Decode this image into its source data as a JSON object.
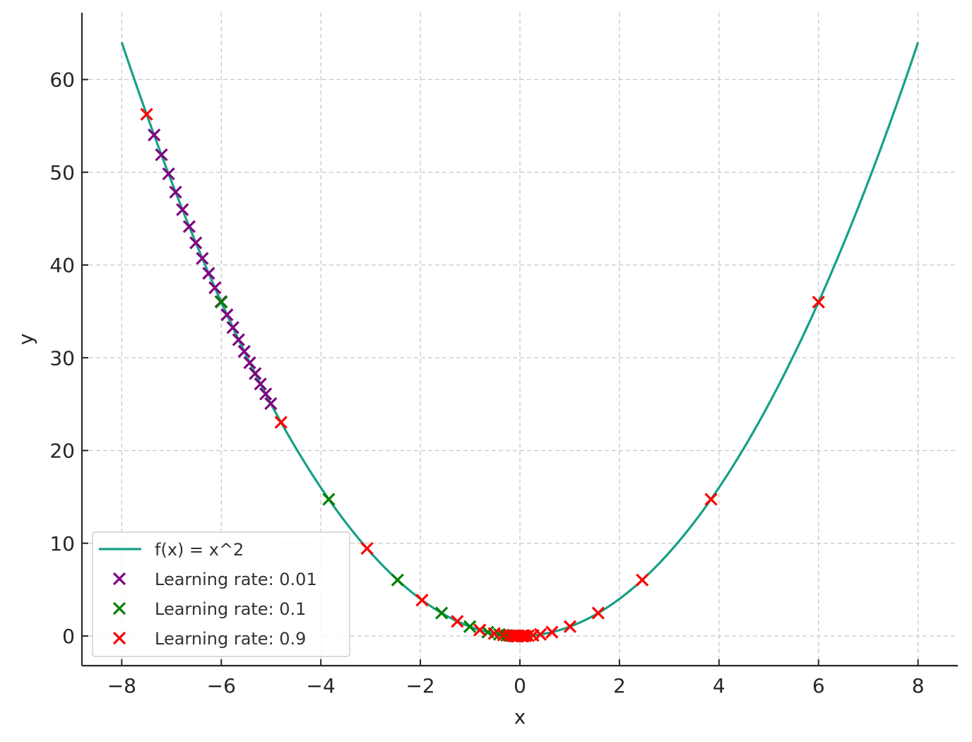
{
  "chart_data": {
    "type": "line",
    "title": "",
    "xlabel": "x",
    "ylabel": "y",
    "xlim": [
      -8.8,
      8.8
    ],
    "ylim": [
      -3.2,
      67.2
    ],
    "xticks": [
      -8,
      -6,
      -4,
      -2,
      0,
      2,
      4,
      6,
      8
    ],
    "xtick_labels": [
      "−8",
      "−6",
      "−4",
      "−2",
      "0",
      "2",
      "4",
      "6",
      "8"
    ],
    "yticks": [
      0,
      10,
      20,
      30,
      40,
      50,
      60
    ],
    "ytick_labels": [
      "0",
      "10",
      "20",
      "30",
      "40",
      "50",
      "60"
    ],
    "grid": true,
    "legend_position": "bottom-left",
    "curve": {
      "name": "f(x) = x^2",
      "color": "#16a085",
      "x_range": [
        -8,
        8
      ]
    },
    "series": [
      {
        "name": "Learning rate: 0.01",
        "type": "scatter",
        "marker": "x",
        "color": "#800080",
        "x": [
          -7.35,
          -7.203,
          -7.059,
          -6.918,
          -6.78,
          -6.644,
          -6.511,
          -6.381,
          -6.253,
          -6.128,
          -6.005,
          -5.885,
          -5.767,
          -5.652,
          -5.539,
          -5.428,
          -5.319,
          -5.213,
          -5.108,
          -5.006
        ]
      },
      {
        "name": "Learning rate: 0.1",
        "type": "scatter",
        "marker": "x",
        "color": "#008000",
        "x": [
          -6.0,
          -3.84,
          -2.458,
          -1.573,
          -1.007,
          -0.644,
          -0.412,
          -0.264,
          -0.169,
          -0.108,
          -0.069,
          -0.044
        ]
      },
      {
        "name": "Learning rate: 0.9",
        "type": "scatter",
        "marker": "x",
        "color": "#ff0000",
        "x": [
          -7.5,
          6.0,
          -4.8,
          3.84,
          -3.072,
          2.458,
          -1.966,
          1.573,
          -1.258,
          1.007,
          -0.805,
          0.644,
          -0.515,
          0.412,
          -0.33,
          0.264,
          -0.211,
          0.169,
          -0.135,
          0.108,
          -0.086,
          0.069,
          -0.055,
          0.044,
          -0.035,
          0.028
        ]
      }
    ]
  }
}
